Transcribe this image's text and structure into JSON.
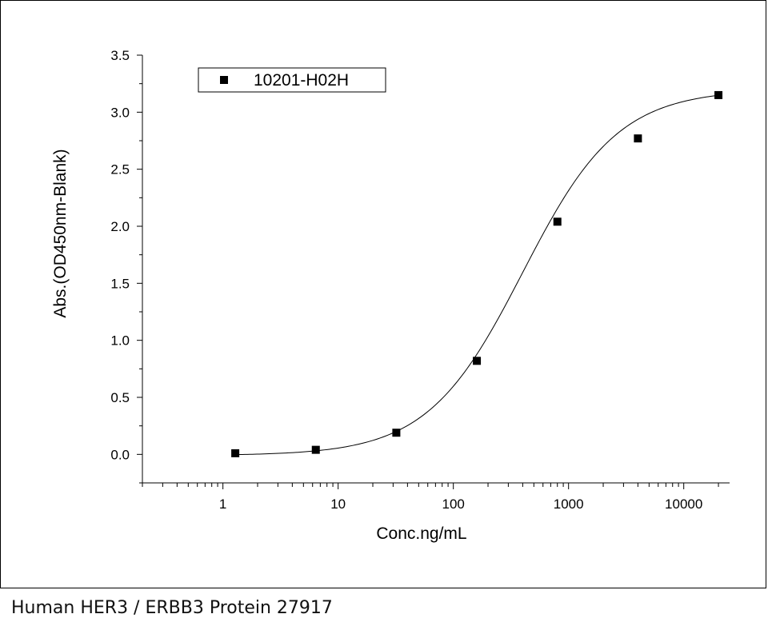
{
  "chart_data": {
    "type": "scatter",
    "title": "",
    "xlabel": "Conc.ng/mL",
    "ylabel": "Abs.(OD450nm-Blank)",
    "xscale": "log",
    "xlim": [
      0.2,
      25000
    ],
    "ylim": [
      -0.25,
      3.5
    ],
    "x_ticks": [
      1,
      10,
      100,
      1000,
      10000
    ],
    "x_tick_labels": [
      "1",
      "10",
      "100",
      "1000",
      "10000"
    ],
    "y_ticks": [
      0.0,
      0.5,
      1.0,
      1.5,
      2.0,
      2.5,
      3.0,
      3.5
    ],
    "y_tick_labels": [
      "0.0",
      "0.5",
      "1.0",
      "1.5",
      "2.0",
      "2.5",
      "3.0",
      "3.5"
    ],
    "legend_position": "top-left",
    "grid": false,
    "series": [
      {
        "name": "10201-H02H",
        "marker": "square",
        "color": "#000000",
        "x": [
          1.28,
          6.4,
          32,
          160,
          800,
          4000,
          20000
        ],
        "y": [
          0.01,
          0.04,
          0.19,
          0.82,
          2.04,
          2.77,
          3.15
        ]
      }
    ],
    "fit_curve": {
      "model": "4PL",
      "bottom": -0.01,
      "top": 3.2,
      "ec50": 400,
      "hill": 1.05
    }
  },
  "caption": "Human HER3 / ERBB3 Protein 27917"
}
